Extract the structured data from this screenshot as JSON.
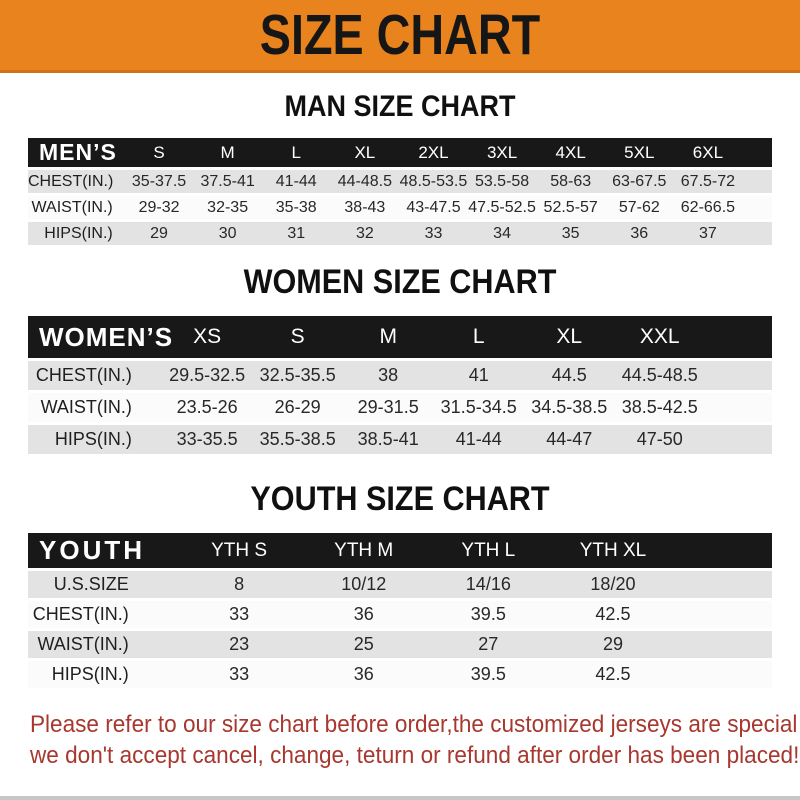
{
  "banner": {
    "title": "SIZE CHART"
  },
  "sections": [
    {
      "title": "MAN SIZE CHART",
      "corner_label": "MEN’S",
      "columns": [
        "S",
        "M",
        "L",
        "XL",
        "2XL",
        "3XL",
        "4XL",
        "5XL",
        "6XL"
      ],
      "rows": [
        {
          "label": "CHEST(IN.)",
          "values": [
            "35-37.5",
            "37.5-41",
            "41-44",
            "44-48.5",
            "48.5-53.5",
            "53.5-58",
            "58-63",
            "63-67.5",
            "67.5-72"
          ]
        },
        {
          "label": "WAIST(IN.)",
          "values": [
            "29-32",
            "32-35",
            "35-38",
            "38-43",
            "43-47.5",
            "47.5-52.5",
            "52.5-57",
            "57-62",
            "62-66.5"
          ]
        },
        {
          "label": "HIPS(IN.)",
          "values": [
            "29",
            "30",
            "31",
            "32",
            "33",
            "34",
            "35",
            "36",
            "37"
          ]
        }
      ]
    },
    {
      "title": "WOMEN SIZE CHART",
      "corner_label": "WOMEN’S",
      "columns": [
        "XS",
        "S",
        "M",
        "L",
        "XL",
        "XXL"
      ],
      "rows": [
        {
          "label": "CHEST(IN.)",
          "values": [
            "29.5-32.5",
            "32.5-35.5",
            "38",
            "41",
            "44.5",
            "44.5-48.5"
          ]
        },
        {
          "label": "WAIST(IN.)",
          "values": [
            "23.5-26",
            "26-29",
            "29-31.5",
            "31.5-34.5",
            "34.5-38.5",
            "38.5-42.5"
          ]
        },
        {
          "label": "HIPS(IN.)",
          "values": [
            "33-35.5",
            "35.5-38.5",
            "38.5-41",
            "41-44",
            "44-47",
            "47-50"
          ]
        }
      ]
    },
    {
      "title": "YOUTH SIZE CHART",
      "corner_label": "YOUTH",
      "columns": [
        "YTH S",
        "YTH M",
        "YTH L",
        "YTH XL"
      ],
      "rows": [
        {
          "label": "U.S.SIZE",
          "values": [
            "8",
            "10/12",
            "14/16",
            "18/20"
          ]
        },
        {
          "label": "CHEST(IN.)",
          "values": [
            "33",
            "36",
            "39.5",
            "42.5"
          ]
        },
        {
          "label": "WAIST(IN.)",
          "values": [
            "23",
            "25",
            "27",
            "29"
          ]
        },
        {
          "label": "HIPS(IN.)",
          "values": [
            "33",
            "36",
            "39.5",
            "42.5"
          ]
        }
      ]
    }
  ],
  "footer": {
    "line1": "Please refer to our size chart before order,the customized jerseys are special products,",
    "line2": "we don't accept cancel, change, teturn or refund after order has been placed!"
  },
  "colors": {
    "banner_bg": "#E8831D",
    "table_header_bg": "#181818",
    "row_alt_bg": "#E3E3E3",
    "footer_text": "#A8382F"
  }
}
